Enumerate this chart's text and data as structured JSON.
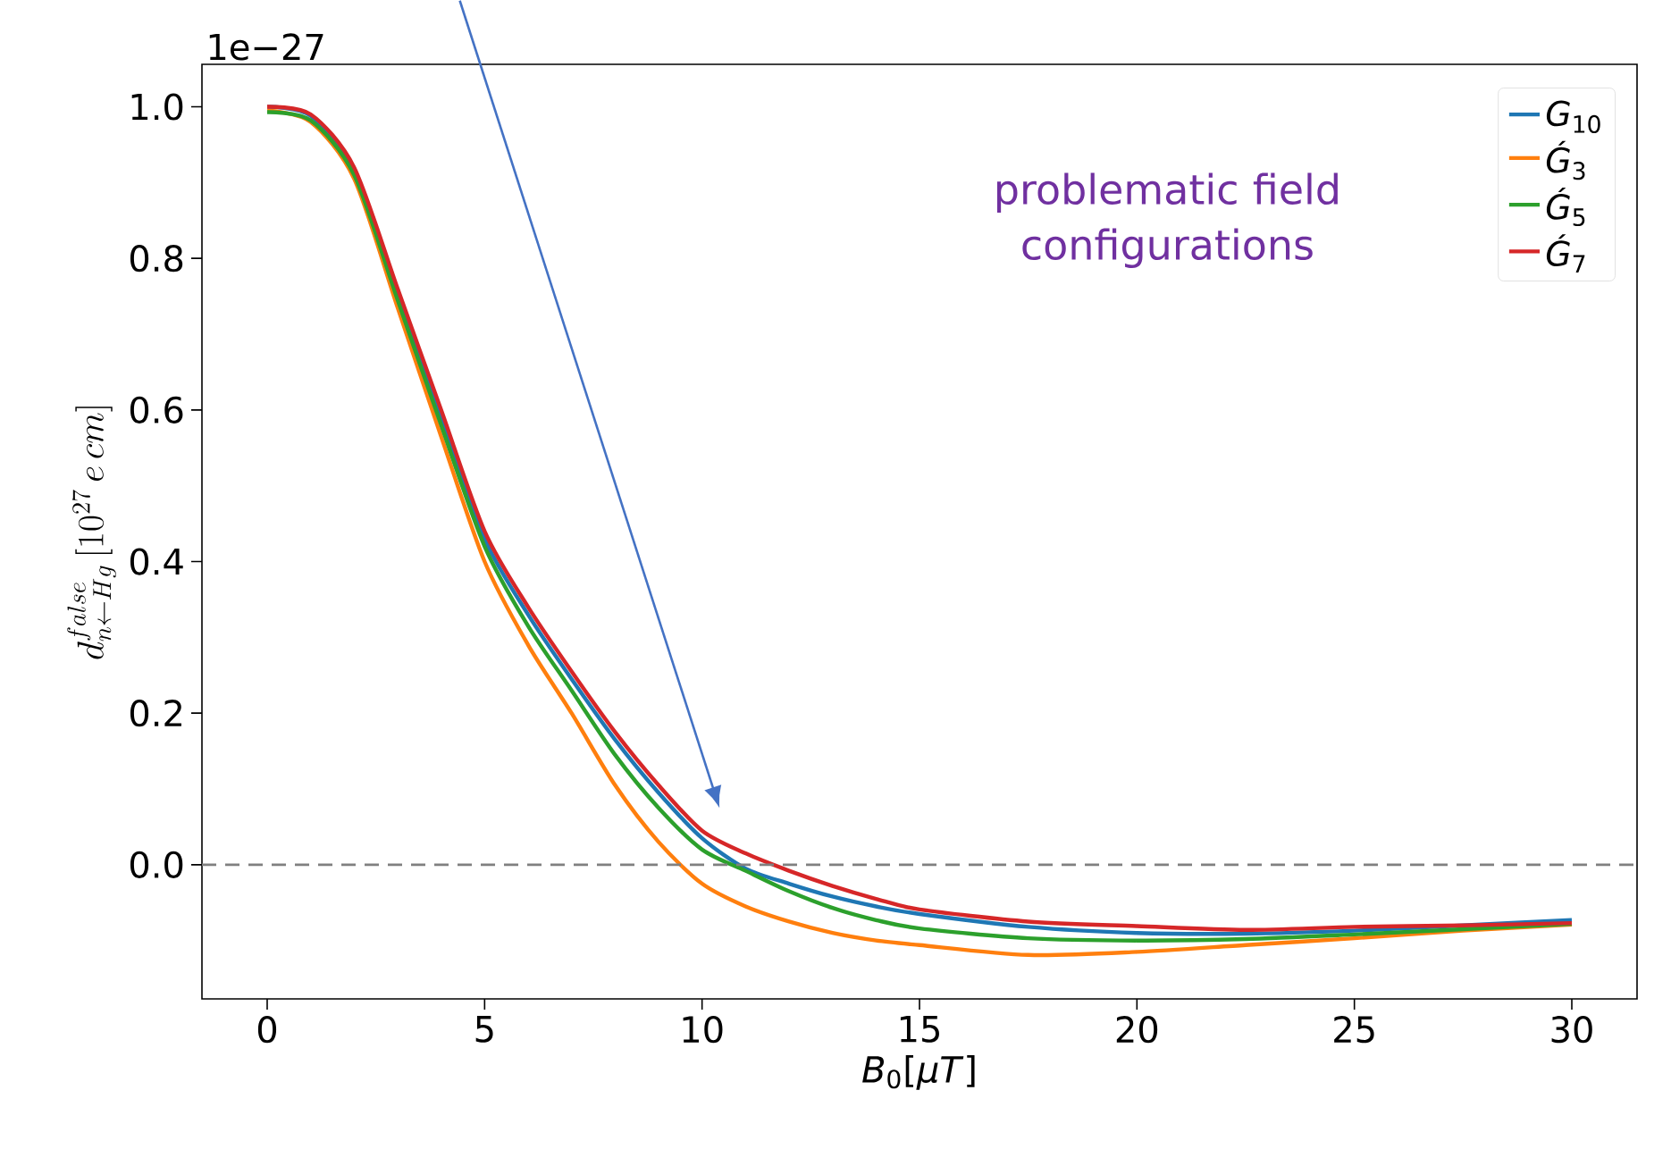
{
  "chart_data": {
    "type": "line",
    "xlabel": "*B*$_{0}$[*μT*]",
    "ylabel": "d_{n\\leftarrow Hg}^{false}\\,[10^{27}\\,e\\,cm]",
    "annotations": [
      "1e−27",
      "problematic field configurations"
    ],
    "x": [
      0,
      1,
      2,
      3,
      4,
      5,
      6,
      7,
      8,
      9,
      10,
      11,
      12,
      13,
      14,
      15,
      17.5,
      20,
      22.5,
      25,
      27.5,
      30
    ],
    "series": [
      {
        "name": "*G*$_{10}$",
        "color": "#1f77b4",
        "values": [
          1.0,
          0.988,
          0.915,
          0.755,
          0.59,
          0.43,
          0.33,
          0.245,
          0.165,
          0.095,
          0.035,
          -0.005,
          -0.025,
          -0.042,
          -0.055,
          -0.065,
          -0.082,
          -0.09,
          -0.091,
          -0.087,
          -0.08,
          -0.073
        ]
      },
      {
        "name": "*Ǵ*$_{3}$",
        "color": "#ff7f0e",
        "values": [
          0.995,
          0.98,
          0.905,
          0.735,
          0.565,
          0.4,
          0.29,
          0.2,
          0.105,
          0.03,
          -0.025,
          -0.055,
          -0.075,
          -0.09,
          -0.1,
          -0.106,
          -0.119,
          -0.115,
          -0.106,
          -0.097,
          -0.087,
          -0.079
        ]
      },
      {
        "name": "*Ǵ*$_{5}$",
        "color": "#2ca02c",
        "values": [
          0.993,
          0.982,
          0.91,
          0.745,
          0.58,
          0.42,
          0.315,
          0.23,
          0.145,
          0.075,
          0.02,
          -0.008,
          -0.035,
          -0.057,
          -0.073,
          -0.084,
          -0.097,
          -0.1,
          -0.098,
          -0.092,
          -0.085,
          -0.078
        ]
      },
      {
        "name": "*Ǵ*$_{7}$",
        "color": "#d62728",
        "values": [
          1.0,
          0.99,
          0.92,
          0.76,
          0.6,
          0.44,
          0.34,
          0.255,
          0.175,
          0.105,
          0.045,
          0.015,
          -0.008,
          -0.028,
          -0.045,
          -0.059,
          -0.075,
          -0.081,
          -0.086,
          -0.082,
          -0.08,
          -0.077
        ]
      }
    ],
    "xlim": [
      -1.5,
      31.5
    ],
    "ylim": [
      -0.177,
      1.056
    ],
    "xticks": [
      0,
      5,
      10,
      15,
      20,
      25,
      30
    ],
    "yticks": [
      {
        "value": 0,
        "label": "0.0"
      },
      {
        "value": 0.2,
        "label": "0.2"
      },
      {
        "value": 0.4,
        "label": "0.4"
      },
      {
        "value": 0.6,
        "label": "0.6"
      },
      {
        "value": 0.8,
        "label": "0.8"
      },
      {
        "value": 1.0,
        "label": "1.0"
      }
    ],
    "ref_lines": [
      {
        "axis": "y",
        "value": 0,
        "color": "#808080",
        "line_style": "dashed"
      }
    ],
    "legend": "top right",
    "grid": false,
    "marker": "none",
    "line_style": "solid"
  }
}
